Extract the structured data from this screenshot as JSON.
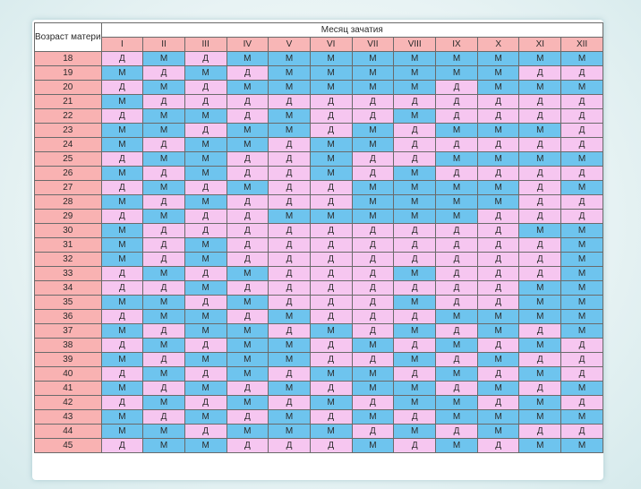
{
  "header": {
    "age_label": "Возраст матери",
    "month_title": "Месяц зачатия"
  },
  "months": [
    "I",
    "II",
    "III",
    "IV",
    "V",
    "VI",
    "VII",
    "VIII",
    "IX",
    "X",
    "XI",
    "XII"
  ],
  "legend_letters": {
    "boy": "М",
    "girl": "Д"
  },
  "colors": {
    "boy": "#6ec4ee",
    "girl": "#f6c6f0",
    "age": "#f9b2b2",
    "header": "#f8b6b6"
  },
  "rows": [
    {
      "age": "18",
      "cells": [
        "Д",
        "М",
        "Д",
        "М",
        "М",
        "М",
        "М",
        "М",
        "М",
        "М",
        "М",
        "М"
      ]
    },
    {
      "age": "19",
      "cells": [
        "М",
        "Д",
        "М",
        "Д",
        "М",
        "М",
        "М",
        "М",
        "М",
        "М",
        "Д",
        "Д"
      ]
    },
    {
      "age": "20",
      "cells": [
        "Д",
        "М",
        "Д",
        "М",
        "М",
        "М",
        "М",
        "М",
        "Д",
        "М",
        "М",
        "М"
      ]
    },
    {
      "age": "21",
      "cells": [
        "М",
        "Д",
        "Д",
        "Д",
        "Д",
        "Д",
        "Д",
        "Д",
        "Д",
        "Д",
        "Д",
        "Д"
      ]
    },
    {
      "age": "22",
      "cells": [
        "Д",
        "М",
        "М",
        "Д",
        "М",
        "Д",
        "Д",
        "М",
        "Д",
        "Д",
        "Д",
        "Д"
      ]
    },
    {
      "age": "23",
      "cells": [
        "М",
        "М",
        "Д",
        "М",
        "М",
        "Д",
        "М",
        "Д",
        "М",
        "М",
        "М",
        "Д"
      ]
    },
    {
      "age": "24",
      "cells": [
        "М",
        "Д",
        "М",
        "М",
        "Д",
        "М",
        "М",
        "Д",
        "Д",
        "Д",
        "Д",
        "Д"
      ]
    },
    {
      "age": "25",
      "cells": [
        "Д",
        "М",
        "М",
        "Д",
        "Д",
        "М",
        "Д",
        "Д",
        "М",
        "М",
        "М",
        "М"
      ]
    },
    {
      "age": "26",
      "cells": [
        "М",
        "Д",
        "М",
        "Д",
        "Д",
        "М",
        "Д",
        "М",
        "Д",
        "Д",
        "Д",
        "Д"
      ]
    },
    {
      "age": "27",
      "cells": [
        "Д",
        "М",
        "Д",
        "М",
        "Д",
        "Д",
        "М",
        "М",
        "М",
        "М",
        "Д",
        "М"
      ]
    },
    {
      "age": "28",
      "cells": [
        "М",
        "Д",
        "М",
        "Д",
        "Д",
        "Д",
        "М",
        "М",
        "М",
        "М",
        "Д",
        "Д"
      ]
    },
    {
      "age": "29",
      "cells": [
        "Д",
        "М",
        "Д",
        "Д",
        "М",
        "М",
        "М",
        "М",
        "М",
        "Д",
        "Д",
        "Д"
      ]
    },
    {
      "age": "30",
      "cells": [
        "М",
        "Д",
        "Д",
        "Д",
        "Д",
        "Д",
        "Д",
        "Д",
        "Д",
        "Д",
        "М",
        "М"
      ]
    },
    {
      "age": "31",
      "cells": [
        "М",
        "Д",
        "М",
        "Д",
        "Д",
        "Д",
        "Д",
        "Д",
        "Д",
        "Д",
        "Д",
        "М"
      ]
    },
    {
      "age": "32",
      "cells": [
        "М",
        "Д",
        "М",
        "Д",
        "Д",
        "Д",
        "Д",
        "Д",
        "Д",
        "Д",
        "Д",
        "М"
      ]
    },
    {
      "age": "33",
      "cells": [
        "Д",
        "М",
        "Д",
        "М",
        "Д",
        "Д",
        "Д",
        "М",
        "Д",
        "Д",
        "Д",
        "М"
      ]
    },
    {
      "age": "34",
      "cells": [
        "Д",
        "Д",
        "М",
        "Д",
        "Д",
        "Д",
        "Д",
        "Д",
        "Д",
        "Д",
        "М",
        "М"
      ]
    },
    {
      "age": "35",
      "cells": [
        "М",
        "М",
        "Д",
        "М",
        "Д",
        "Д",
        "Д",
        "М",
        "Д",
        "Д",
        "М",
        "М"
      ]
    },
    {
      "age": "36",
      "cells": [
        "Д",
        "М",
        "М",
        "Д",
        "М",
        "Д",
        "Д",
        "Д",
        "М",
        "М",
        "М",
        "М"
      ]
    },
    {
      "age": "37",
      "cells": [
        "М",
        "Д",
        "М",
        "М",
        "Д",
        "М",
        "Д",
        "М",
        "Д",
        "М",
        "Д",
        "М"
      ]
    },
    {
      "age": "38",
      "cells": [
        "Д",
        "М",
        "Д",
        "М",
        "М",
        "Д",
        "М",
        "Д",
        "М",
        "Д",
        "М",
        "Д"
      ]
    },
    {
      "age": "39",
      "cells": [
        "М",
        "Д",
        "М",
        "М",
        "М",
        "Д",
        "Д",
        "М",
        "Д",
        "М",
        "Д",
        "Д"
      ]
    },
    {
      "age": "40",
      "cells": [
        "Д",
        "М",
        "Д",
        "М",
        "Д",
        "М",
        "М",
        "Д",
        "М",
        "Д",
        "М",
        "Д"
      ]
    },
    {
      "age": "41",
      "cells": [
        "М",
        "Д",
        "М",
        "Д",
        "М",
        "Д",
        "М",
        "М",
        "Д",
        "М",
        "Д",
        "М"
      ]
    },
    {
      "age": "42",
      "cells": [
        "Д",
        "М",
        "Д",
        "М",
        "Д",
        "М",
        "Д",
        "М",
        "М",
        "Д",
        "М",
        "Д"
      ]
    },
    {
      "age": "43",
      "cells": [
        "М",
        "Д",
        "М",
        "Д",
        "М",
        "Д",
        "М",
        "Д",
        "М",
        "М",
        "М",
        "М"
      ]
    },
    {
      "age": "44",
      "cells": [
        "М",
        "М",
        "Д",
        "М",
        "М",
        "М",
        "Д",
        "М",
        "Д",
        "М",
        "Д",
        "Д"
      ]
    },
    {
      "age": "45",
      "cells": [
        "Д",
        "М",
        "М",
        "Д",
        "Д",
        "Д",
        "М",
        "Д",
        "М",
        "Д",
        "М",
        "М"
      ]
    }
  ]
}
